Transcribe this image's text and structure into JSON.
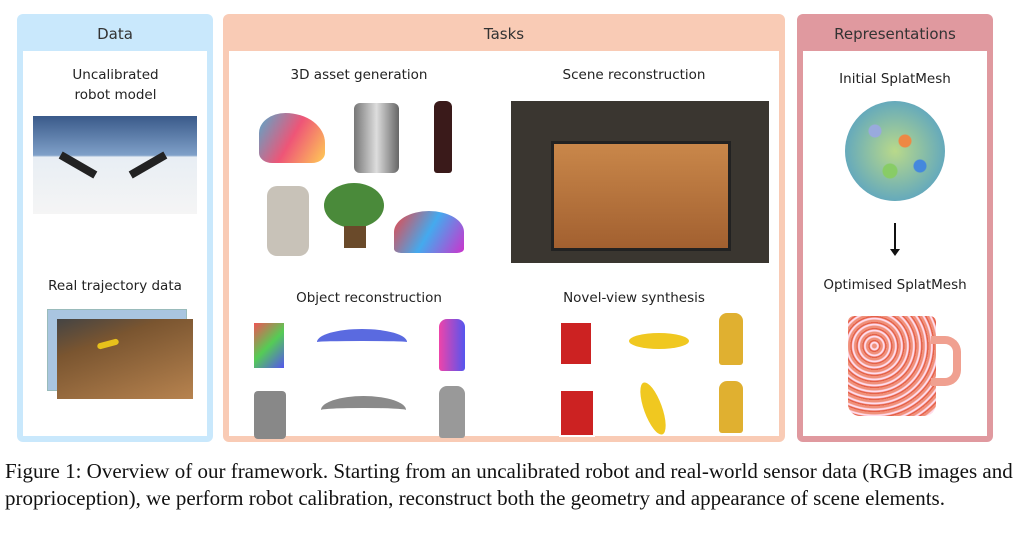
{
  "panels": {
    "data": {
      "title": "Data",
      "color": "#c9e8fc",
      "items": [
        "Uncalibrated robot model",
        "Real trajectory data"
      ]
    },
    "tasks": {
      "title": "Tasks",
      "color": "#f9cbb5",
      "items": [
        "3D asset generation",
        "Scene reconstruction",
        "Object reconstruction",
        "Novel-view synthesis"
      ]
    },
    "representations": {
      "title": "Representations",
      "color": "#e0999f",
      "items": [
        "Initial SplatMesh",
        "Optimised SplatMesh"
      ]
    }
  },
  "caption": "Figure 1: Overview of our framework. Starting from an uncalibrated robot and real-world sensor data (RGB images and proprioception), we perform robot calibration, reconstruct both the geometry and appearance of scene elements."
}
